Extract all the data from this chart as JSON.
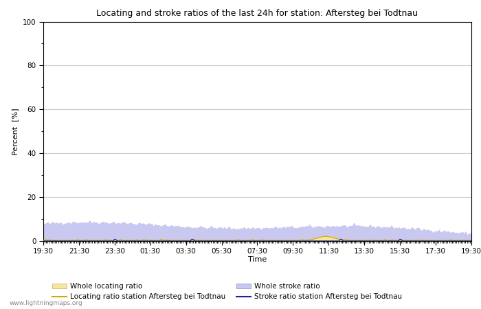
{
  "title": "Locating and stroke ratios of the last 24h for station: Aftersteg bei Todtnau",
  "ylabel": "Percent  [%]",
  "xlabel": "Time",
  "watermark": "www.lightningmaps.org",
  "ylim": [
    0,
    100
  ],
  "yticks": [
    0,
    20,
    40,
    60,
    80,
    100
  ],
  "yticks_minor": [
    10,
    30,
    50,
    70,
    90
  ],
  "x_tick_labels": [
    "19:30",
    "21:30",
    "23:30",
    "01:30",
    "03:30",
    "05:30",
    "07:30",
    "09:30",
    "11:30",
    "13:30",
    "15:30",
    "17:30",
    "19:30"
  ],
  "n_points": 289,
  "background_color": "#ffffff",
  "plot_bg_color": "#ffffff",
  "grid_color": "#cccccc",
  "fill_locating_color": "#f5e6a0",
  "fill_stroke_color": "#c8c8f0",
  "line_locating_color": "#d4a800",
  "line_stroke_color": "#2020a0",
  "legend": {
    "whole_locating_label": "Whole locating ratio",
    "whole_stroke_label": "Whole stroke ratio",
    "station_locating_label": "Locating ratio station Aftersteg bei Todtnau",
    "station_stroke_label": "Stroke ratio station Aftersteg bei Todtnau"
  }
}
